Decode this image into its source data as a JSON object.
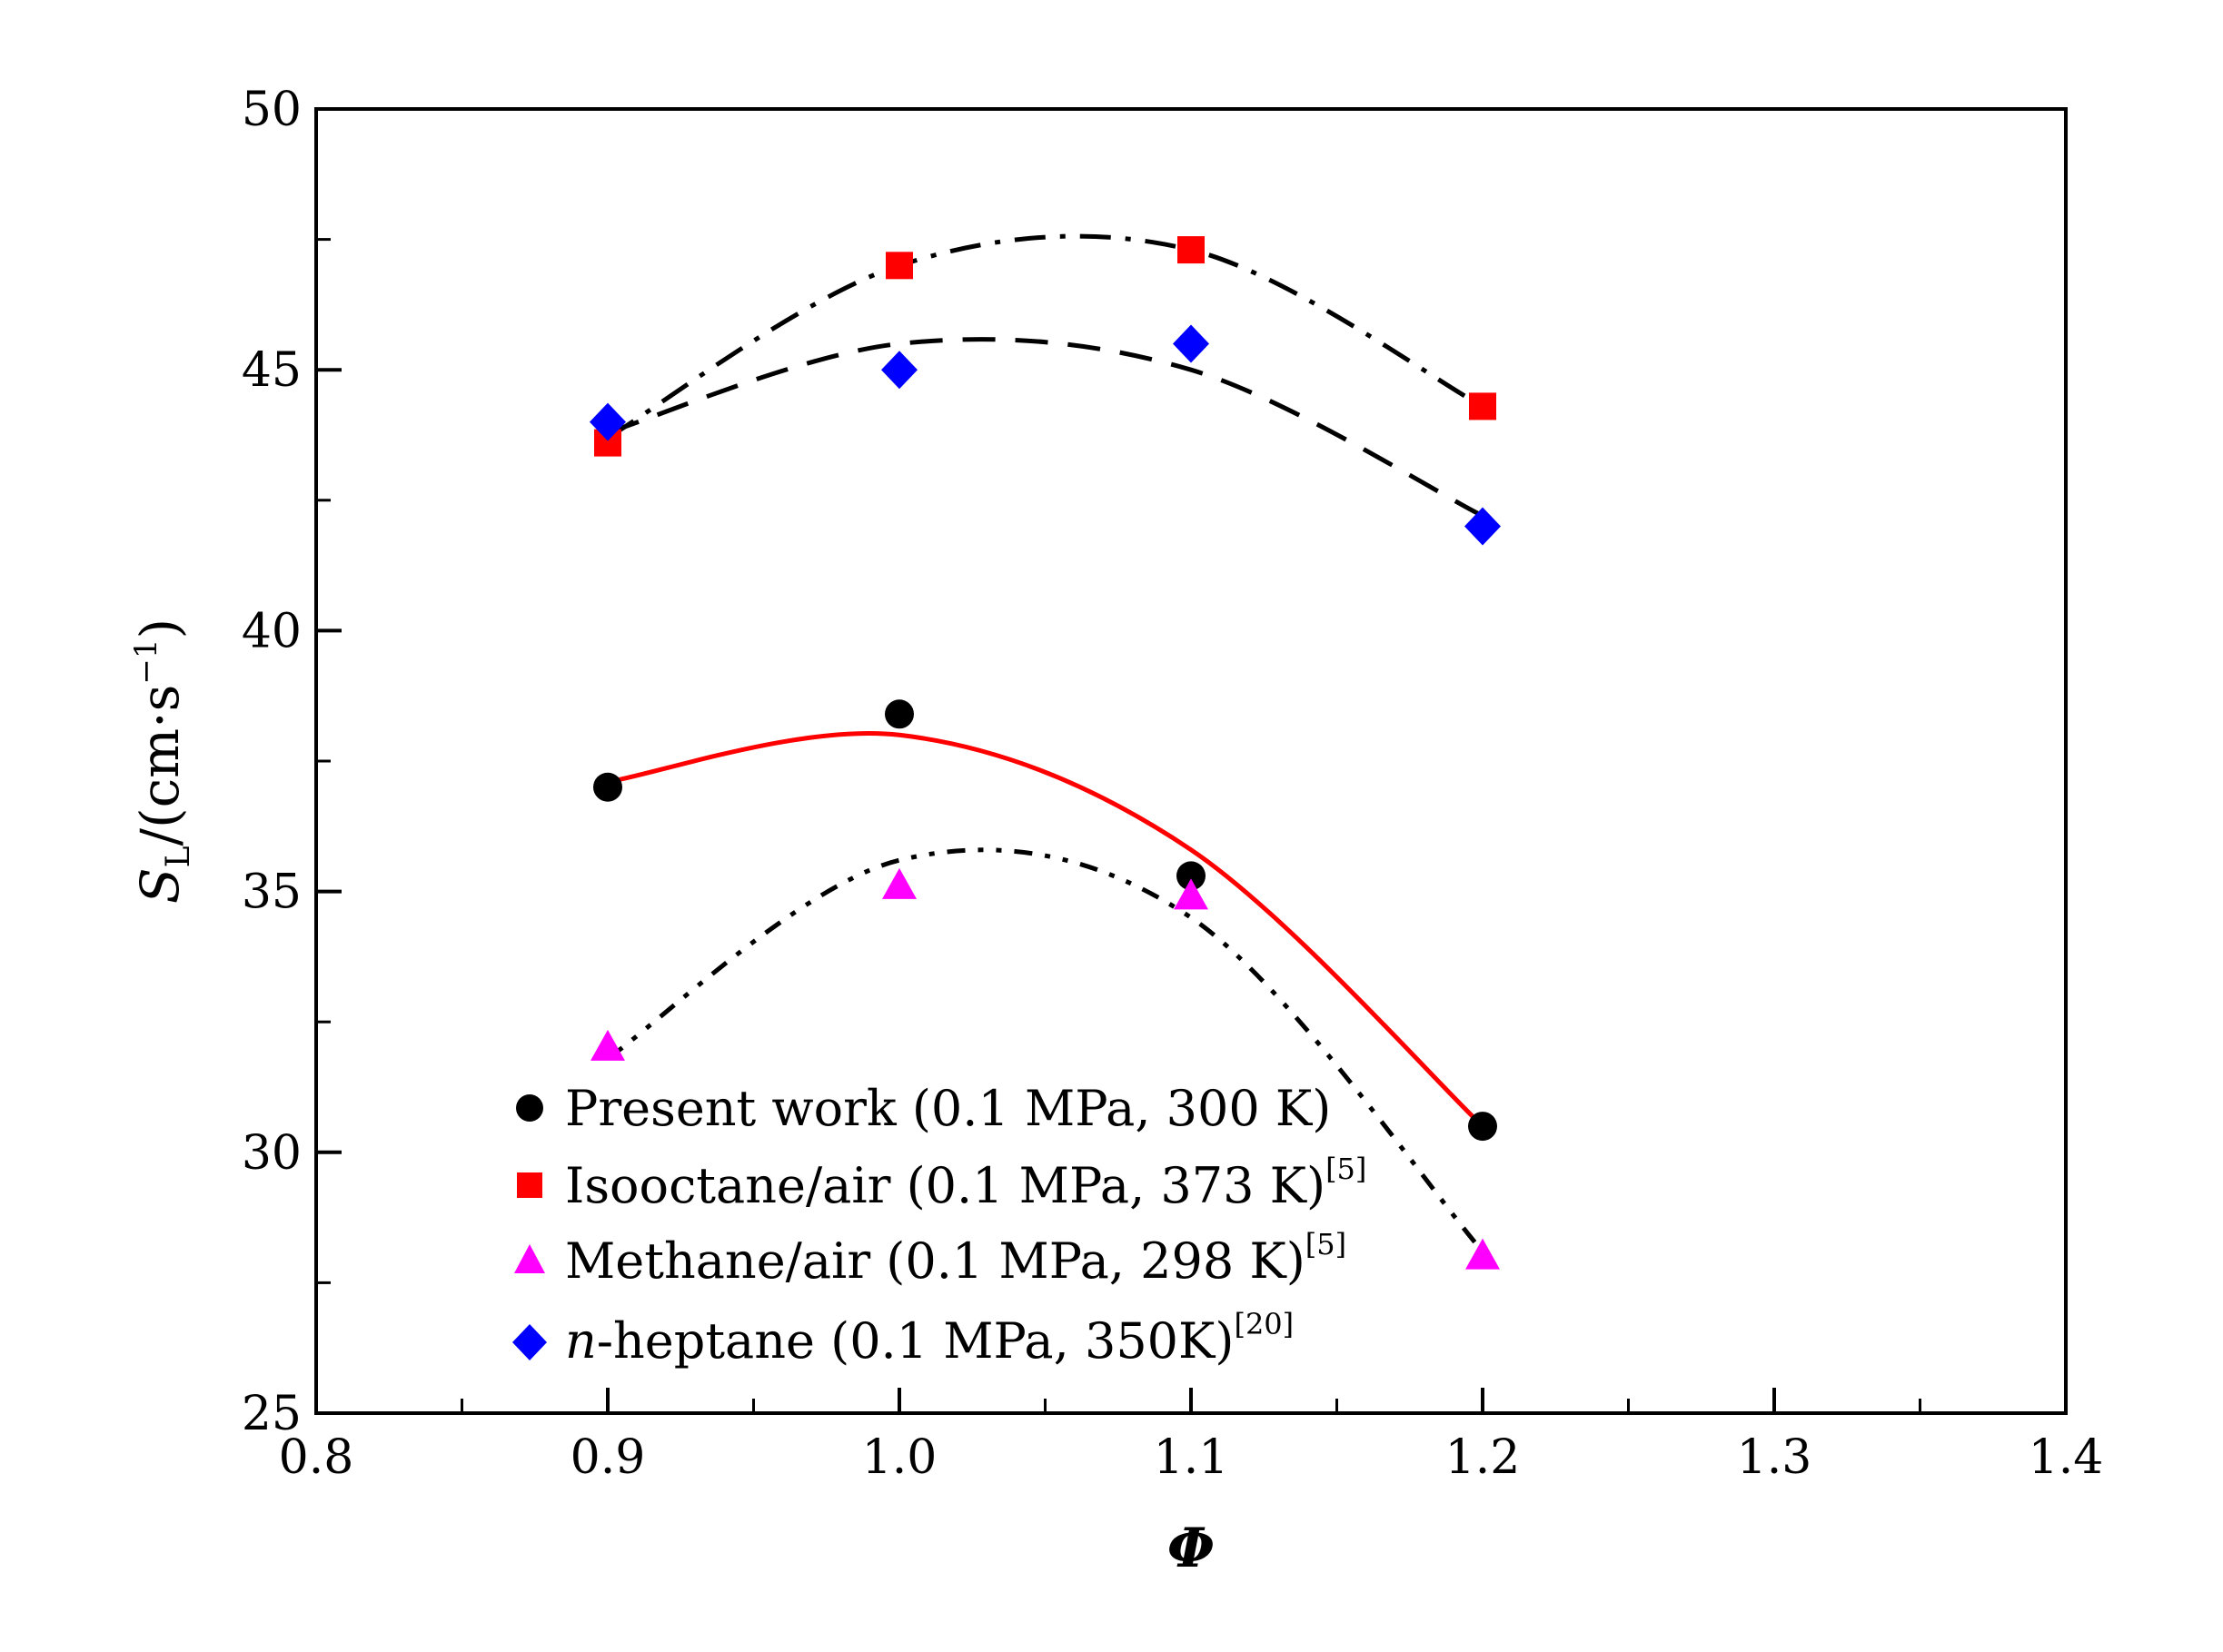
{
  "chart_data": {
    "type": "scatter",
    "title": "",
    "xlabel": "Φ",
    "ylabel": {
      "main": "S",
      "sub": "L",
      "unit": "/(cm·s",
      "sup": "−1",
      "close": ")"
    },
    "xlim": [
      0.8,
      1.4
    ],
    "ylim": [
      25,
      50
    ],
    "xticks": [
      "0.8",
      "0.9",
      "1.0",
      "1.1",
      "1.2",
      "1.3",
      "1.4"
    ],
    "yticks": [
      "25",
      "30",
      "35",
      "40",
      "45",
      "50"
    ],
    "grid": false,
    "legend_position": "bottom-left",
    "series": [
      {
        "name": "Present work (0.1 MPa, 300 K)",
        "ref": "",
        "marker": "circle",
        "color": "#000000",
        "x": [
          0.9,
          1.0,
          1.1,
          1.2
        ],
        "y": [
          37.0,
          38.4,
          35.3,
          30.5
        ],
        "fit": {
          "x": [
            0.9,
            1.0,
            1.1,
            1.2
          ],
          "y": [
            37.1,
            38.0,
            35.8,
            30.5
          ],
          "style": "solid",
          "color": "#ff0000"
        }
      },
      {
        "name": "Isooctane/air (0.1 MPa, 373 K)",
        "ref": "[5]",
        "marker": "square",
        "color": "#ff0000",
        "x": [
          0.9,
          1.0,
          1.1,
          1.2
        ],
        "y": [
          43.6,
          47.0,
          47.3,
          44.3
        ],
        "fit": {
          "x": [
            0.9,
            1.0,
            1.1,
            1.2
          ],
          "y": [
            43.7,
            47.0,
            47.3,
            44.3
          ],
          "style": "dashdot",
          "color": "#000000"
        }
      },
      {
        "name": "Methane/air (0.1 MPa, 298 K)",
        "ref": "[5]",
        "marker": "triangle",
        "color": "#ff00ff",
        "x": [
          0.9,
          1.0,
          1.1,
          1.2
        ],
        "y": [
          32.0,
          35.1,
          34.9,
          28.0
        ],
        "fit": {
          "x": [
            0.9,
            1.0,
            1.1,
            1.2
          ],
          "y": [
            31.8,
            35.6,
            34.5,
            28.1
          ],
          "style": "dashdotdot",
          "color": "#000000"
        }
      },
      {
        "name_italic": "n",
        "name": "-heptane (0.1 MPa, 350K)",
        "ref": "[20]",
        "marker": "diamond",
        "color": "#0000ff",
        "x": [
          0.9,
          1.0,
          1.1,
          1.2
        ],
        "y": [
          44.0,
          45.0,
          45.5,
          42.0
        ],
        "fit": {
          "x": [
            0.9,
            1.0,
            1.1,
            1.2
          ],
          "y": [
            43.8,
            45.5,
            45.0,
            42.2
          ],
          "style": "dashed",
          "color": "#000000"
        }
      }
    ]
  }
}
